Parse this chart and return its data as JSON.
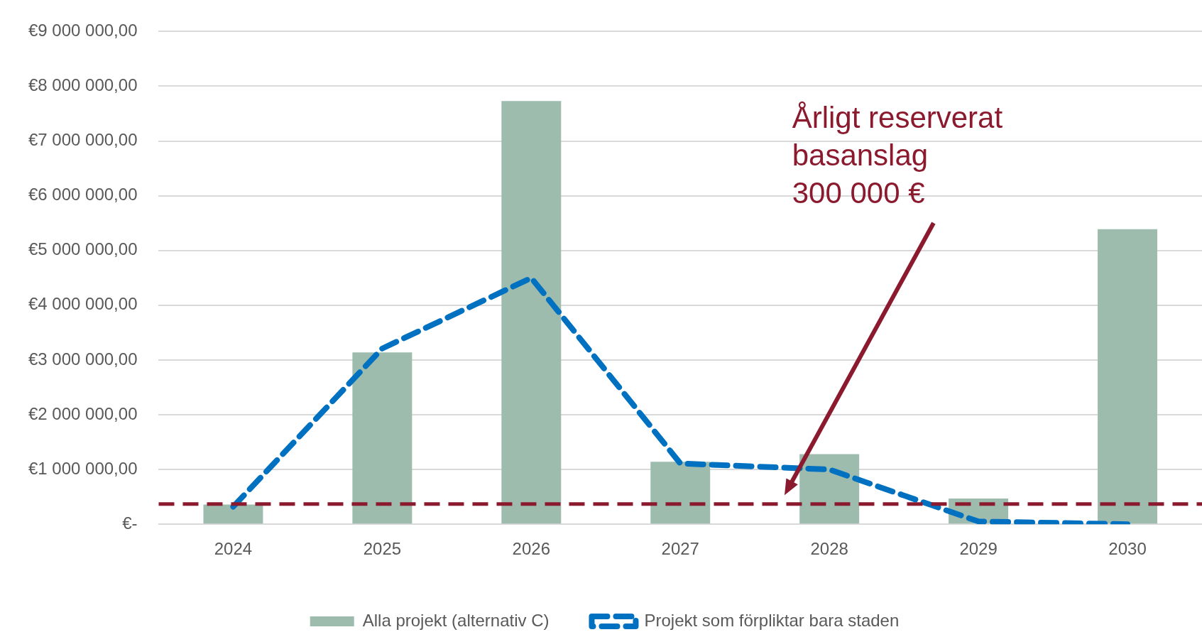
{
  "chart_data": {
    "type": "bar",
    "categories": [
      "2024",
      "2025",
      "2026",
      "2027",
      "2028",
      "2029",
      "2030"
    ],
    "series": [
      {
        "name": "Alla projekt (alternativ C)",
        "color": "#9dbcae",
        "values": [
          360000,
          3140000,
          7730000,
          1140000,
          1280000,
          470000,
          5390000
        ]
      },
      {
        "name": "Projekt som förpliktar bara staden",
        "type": "line",
        "color": "#0070c0",
        "line_style": "dashed",
        "values": [
          320000,
          3210000,
          4500000,
          1110000,
          1000000,
          50000,
          0
        ]
      }
    ],
    "ylim": [
      0,
      9000000
    ],
    "yticks": [
      {
        "value": 0,
        "label": "€-"
      },
      {
        "value": 1000000,
        "label": "€1 000 000,00"
      },
      {
        "value": 2000000,
        "label": "€2 000 000,00"
      },
      {
        "value": 3000000,
        "label": "€3 000 000,00"
      },
      {
        "value": 4000000,
        "label": "€4 000 000,00"
      },
      {
        "value": 5000000,
        "label": "€5 000 000,00"
      },
      {
        "value": 6000000,
        "label": "€6 000 000,00"
      },
      {
        "value": 7000000,
        "label": "€7 000 000,00"
      },
      {
        "value": 8000000,
        "label": "€8 000 000,00"
      },
      {
        "value": 9000000,
        "label": "€9 000 000,00"
      }
    ],
    "ref_lines": [
      {
        "axis": "y",
        "value": 370000,
        "label": "Årligt reserverat\nbasanslag\n300 000 €",
        "color": "#8b1a2e",
        "line_style": "dashed"
      }
    ],
    "grid": "y",
    "legend": "bottom",
    "marker": "none"
  }
}
